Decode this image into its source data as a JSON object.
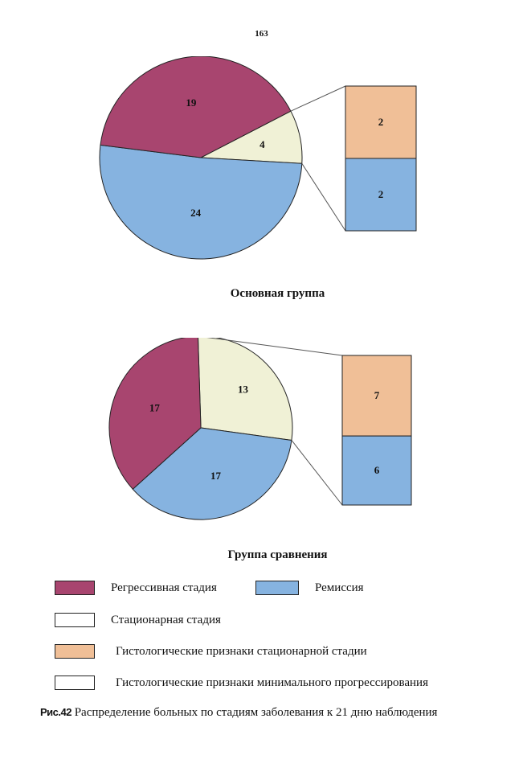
{
  "page_number": "163",
  "colors": {
    "regressive": "#a8456f",
    "remission": "#86b3e0",
    "stationary": "#f0f1d6",
    "hist_stationary": "#f0bf97",
    "hist_minimal": "#ffffff"
  },
  "chart_data": [
    {
      "type": "pie",
      "title": "Основная группа",
      "slices": [
        {
          "name": "Регрессивная стадия",
          "value": 19,
          "label": "19",
          "color_key": "regressive"
        },
        {
          "name": "Стационарная стадия",
          "value": 4,
          "label": "4",
          "color_key": "stationary"
        },
        {
          "name": "Ремиссия",
          "value": 24,
          "label": "24",
          "color_key": "remission"
        }
      ],
      "breakdown": {
        "of_slice": "Стационарная стадия",
        "segments": [
          {
            "name": "Гистологические признаки стационарной стадии",
            "value": 2,
            "label": "2",
            "color_key": "hist_stationary"
          },
          {
            "name": "Ремиссия",
            "value": 2,
            "label": "2",
            "color_key": "remission"
          }
        ]
      }
    },
    {
      "type": "pie",
      "title": "Группа сравнения",
      "slices": [
        {
          "name": "Регрессивная стадия",
          "value": 17,
          "label": "17",
          "color_key": "regressive"
        },
        {
          "name": "Стационарная стадия",
          "value": 13,
          "label": "13",
          "color_key": "stationary"
        },
        {
          "name": "Ремиссия",
          "value": 17,
          "label": "17",
          "color_key": "remission"
        }
      ],
      "breakdown": {
        "of_slice": "Стационарная стадия",
        "segments": [
          {
            "name": "Гистологические признаки стационарной стадии",
            "value": 7,
            "label": "7",
            "color_key": "hist_stationary"
          },
          {
            "name": "Ремиссия",
            "value": 6,
            "label": "6",
            "color_key": "remission"
          }
        ]
      }
    }
  ],
  "legend": [
    {
      "label": "Регрессивная стадия",
      "color_key": "regressive"
    },
    {
      "label": "Ремиссия",
      "color_key": "remission"
    },
    {
      "label": "Стационарная стадия",
      "color_key": "hist_minimal"
    },
    {
      "label": "Гистологические признаки стационарной стадии",
      "color_key": "hist_stationary"
    },
    {
      "label": "Гистологические признаки минимального прогрессирования",
      "color_key": "hist_minimal"
    }
  ],
  "caption": {
    "figure_label": "Рис.42",
    "text": "Распределение больных по стадиям заболевания к 21 дню наблюдения"
  }
}
